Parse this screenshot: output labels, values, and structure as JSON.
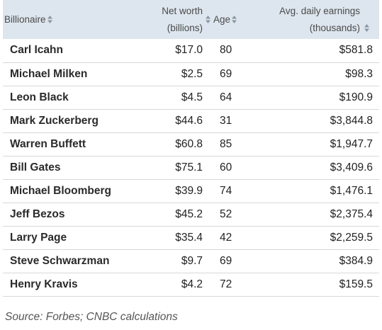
{
  "table": {
    "columns": {
      "billionaire": "Billionaire",
      "net_worth_line1": "Net worth",
      "net_worth_line2": "(billions)",
      "age": "Age",
      "earnings_line1": "Avg. daily earnings",
      "earnings_line2": "(thousands)"
    },
    "rows": [
      {
        "name": "Carl Icahn",
        "net_worth": "$17.0",
        "age": "80",
        "earnings": "$581.8"
      },
      {
        "name": "Michael Milken",
        "net_worth": "$2.5",
        "age": "69",
        "earnings": "$98.3"
      },
      {
        "name": "Leon Black",
        "net_worth": "$4.5",
        "age": "64",
        "earnings": "$190.9"
      },
      {
        "name": "Mark Zuckerberg",
        "net_worth": "$44.6",
        "age": "31",
        "earnings": "$3,844.8"
      },
      {
        "name": "Warren Buffett",
        "net_worth": "$60.8",
        "age": "85",
        "earnings": "$1,947.7"
      },
      {
        "name": "Bill Gates",
        "net_worth": "$75.1",
        "age": "60",
        "earnings": "$3,409.6"
      },
      {
        "name": "Michael Bloomberg",
        "net_worth": "$39.9",
        "age": "74",
        "earnings": "$1,476.1"
      },
      {
        "name": "Jeff Bezos",
        "net_worth": "$45.2",
        "age": "52",
        "earnings": "$2,375.4"
      },
      {
        "name": "Larry Page",
        "net_worth": "$35.4",
        "age": "42",
        "earnings": "$2,259.5"
      },
      {
        "name": "Steve Schwarzman",
        "net_worth": "$9.7",
        "age": "69",
        "earnings": "$384.9"
      },
      {
        "name": "Henry Kravis",
        "net_worth": "$4.2",
        "age": "72",
        "earnings": "$159.5"
      }
    ]
  },
  "source": "Source: Forbes; CNBC calculations",
  "colors": {
    "header_bg": "#dde6ee",
    "row_divider": "#d8d8d8",
    "text": "#222222"
  },
  "icons": {
    "sort": "sort-arrows-icon"
  }
}
